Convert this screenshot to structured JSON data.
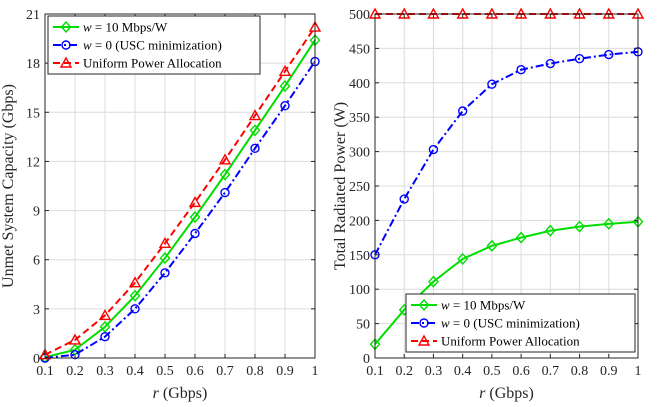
{
  "chart_data": [
    {
      "type": "line",
      "title": "",
      "xlabel_var": "r",
      "xlabel_unit": "(Gbps)",
      "ylabel": "Unmet System Capacity (Gbps)",
      "xlim": [
        0.1,
        1
      ],
      "ylim": [
        0,
        21
      ],
      "xticks": [
        "0.1",
        "0.2",
        "0.3",
        "0.4",
        "0.5",
        "0.6",
        "0.7",
        "0.8",
        "0.9",
        "1"
      ],
      "yticks": [
        "0",
        "3",
        "6",
        "9",
        "12",
        "15",
        "18",
        "21"
      ],
      "grid": true,
      "legend_position": "top-left",
      "x": [
        0.1,
        0.2,
        0.3,
        0.4,
        0.5,
        0.6,
        0.7,
        0.8,
        0.9,
        1.0
      ],
      "series": [
        {
          "legend_var": "w",
          "legend_rest": " = 10 Mbps/W",
          "color": "#00dd00",
          "dash": "solid",
          "marker": "diamond",
          "values": [
            0.05,
            0.5,
            1.9,
            3.8,
            6.1,
            8.6,
            11.2,
            13.9,
            16.6,
            19.4
          ]
        },
        {
          "legend_var": "w",
          "legend_rest": " = 0 (USC minimization)",
          "color": "#0000ff",
          "dash": "dashdot",
          "marker": "circle",
          "values": [
            0.0,
            0.2,
            1.3,
            3.0,
            5.2,
            7.6,
            10.1,
            12.8,
            15.4,
            18.1
          ]
        },
        {
          "legend_var": "",
          "legend_rest": "Uniform Power Allocation",
          "color": "#ff0000",
          "dash": "dashed",
          "marker": "triangle",
          "values": [
            0.2,
            1.1,
            2.6,
            4.6,
            7.0,
            9.5,
            12.1,
            14.8,
            17.5,
            20.2
          ]
        }
      ]
    },
    {
      "type": "line",
      "title": "",
      "xlabel_var": "r",
      "xlabel_unit": "(Gbps)",
      "ylabel": "Total Radiated Power (W)",
      "xlim": [
        0.1,
        1
      ],
      "ylim": [
        0,
        500
      ],
      "xticks": [
        "0.1",
        "0.2",
        "0.3",
        "0.4",
        "0.5",
        "0.6",
        "0.7",
        "0.8",
        "0.9",
        "1"
      ],
      "yticks": [
        "0",
        "50",
        "100",
        "150",
        "200",
        "250",
        "300",
        "350",
        "400",
        "450",
        "500"
      ],
      "grid": true,
      "legend_position": "bottom-right",
      "x": [
        0.1,
        0.2,
        0.3,
        0.4,
        0.5,
        0.6,
        0.7,
        0.8,
        0.9,
        1.0
      ],
      "series": [
        {
          "legend_var": "w",
          "legend_rest": " = 10 Mbps/W",
          "color": "#00dd00",
          "dash": "solid",
          "marker": "diamond",
          "values": [
            20,
            70,
            111,
            144,
            163,
            175,
            185,
            191,
            195,
            198
          ]
        },
        {
          "legend_var": "w",
          "legend_rest": " = 0 (USC minimization)",
          "color": "#0000ff",
          "dash": "dashdot",
          "marker": "circle",
          "values": [
            150,
            231,
            303,
            359,
            398,
            419,
            428,
            435,
            441,
            445
          ]
        },
        {
          "legend_var": "",
          "legend_rest": "Uniform Power Allocation",
          "color": "#ff0000",
          "dash": "dashed",
          "marker": "triangle",
          "values": [
            500,
            500,
            500,
            500,
            500,
            500,
            500,
            500,
            500,
            500
          ]
        }
      ]
    }
  ]
}
